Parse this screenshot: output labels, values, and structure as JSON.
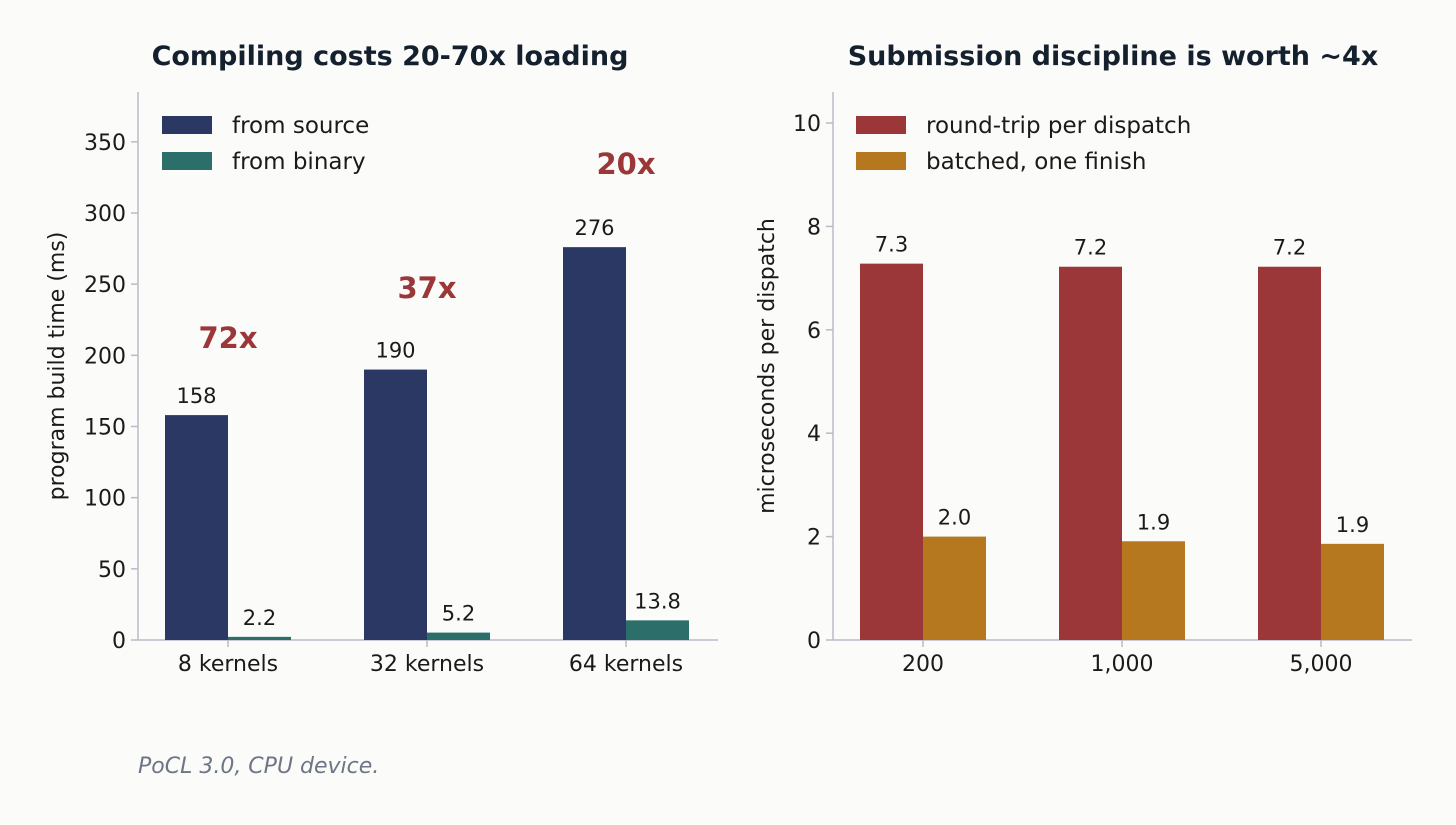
{
  "caption": "PoCL 3.0, CPU device.",
  "colors": {
    "axis": "#b9bcc8",
    "text": "#1a1a1a",
    "title": "#14202e",
    "annotation": "#9b3639"
  },
  "chart_data": [
    {
      "type": "bar",
      "title": "Compiling costs 20-70x loading",
      "xlabel": "",
      "ylabel": "program build time (ms)",
      "categories": [
        "8 kernels",
        "32 kernels",
        "64 kernels"
      ],
      "ylim": [
        0,
        385
      ],
      "yticks": [
        0,
        50,
        100,
        150,
        200,
        250,
        300,
        350
      ],
      "grid": false,
      "legend": "top-left",
      "series": [
        {
          "name": "from source",
          "color": "#2b3863",
          "values": [
            158,
            190,
            276
          ],
          "labels": [
            "158",
            "190",
            "276"
          ]
        },
        {
          "name": "from binary",
          "color": "#2c6e6a",
          "values": [
            2.2,
            5.2,
            13.8
          ],
          "labels": [
            "2.2",
            "5.2",
            "13.8"
          ]
        }
      ],
      "annotations": [
        {
          "text": "72x",
          "category": "8 kernels",
          "y": 213
        },
        {
          "text": "37x",
          "category": "32 kernels",
          "y": 248
        },
        {
          "text": "20x",
          "category": "64 kernels",
          "y": 335
        }
      ]
    },
    {
      "type": "bar",
      "title": "Submission discipline is worth ~4x",
      "xlabel": "",
      "ylabel": "microseconds per dispatch",
      "categories": [
        "200",
        "1,000",
        "5,000"
      ],
      "ylim": [
        0,
        10.6
      ],
      "yticks": [
        0,
        2,
        4,
        6,
        8,
        10
      ],
      "grid": false,
      "legend": "top-left",
      "series": [
        {
          "name": "round-trip per dispatch",
          "color": "#9b3639",
          "values": [
            7.28,
            7.22,
            7.22
          ],
          "labels": [
            "7.3",
            "7.2",
            "7.2"
          ]
        },
        {
          "name": "batched, one finish",
          "color": "#b5781f",
          "values": [
            2.0,
            1.91,
            1.86
          ],
          "labels": [
            "2.0",
            "1.9",
            "1.9"
          ]
        }
      ],
      "annotations": []
    }
  ]
}
